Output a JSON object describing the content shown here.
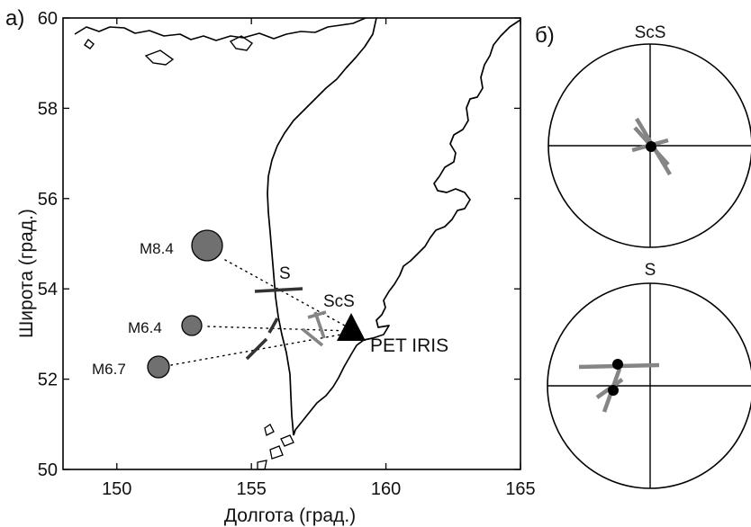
{
  "panels": {
    "a": {
      "label": "а)",
      "xlabel": "Долгота  (град.)",
      "ylabel": "Широта (град.)",
      "xticks": [
        "150",
        "155",
        "160",
        "165"
      ],
      "yticks": [
        "50",
        "52",
        "54",
        "56",
        "58",
        "60"
      ],
      "xlim": [
        148,
        165
      ],
      "ylim": [
        50,
        60
      ],
      "events": [
        {
          "label": "M8.4",
          "lon": 153.2,
          "lat": 54.9,
          "magnitude": 8.4
        },
        {
          "label": "M6.4",
          "lon": 152.8,
          "lat": 53.2,
          "magnitude": 6.4
        },
        {
          "label": "M6.7",
          "lon": 151.4,
          "lat": 52.25,
          "magnitude": 6.7
        }
      ],
      "station": {
        "label": "PET IRIS",
        "lon": 158.6,
        "lat": 53.1
      },
      "phase_labels": {
        "s": "S",
        "scs": "ScS"
      }
    },
    "b": {
      "label": "б)",
      "top_title": "ScS",
      "bottom_title": "S"
    }
  },
  "colors": {
    "event_fill": "#707070",
    "gray_bar": "#858585",
    "dark_bar": "#333333",
    "coast": "#000000"
  }
}
